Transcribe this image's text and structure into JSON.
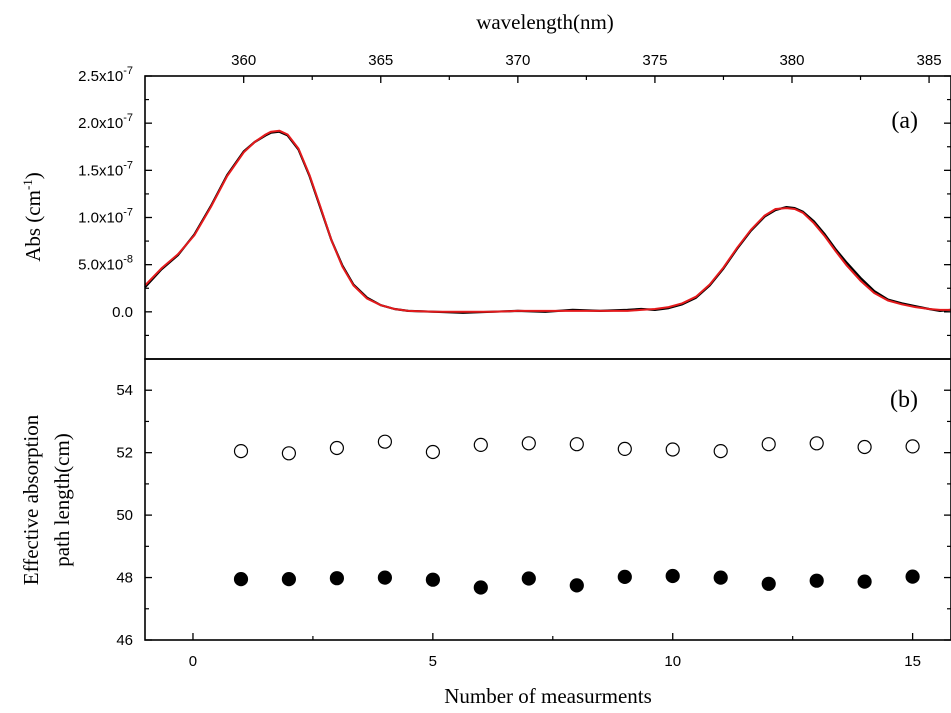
{
  "chart_data": [
    {
      "panel": "a",
      "type": "line",
      "panel_label": "(a)",
      "xlabel": "wavelength(nm)",
      "ylabel": "Abs (cm",
      "ylabel_sup": "-1",
      "ylabel_tail": ")",
      "xlim": [
        356.4,
        385.8
      ],
      "ylim": [
        -5e-08,
        2.5e-07
      ],
      "x_ticks": [
        360,
        365,
        370,
        375,
        380,
        385
      ],
      "y_ticks": [
        0,
        5e-08,
        1e-07,
        1.5e-07,
        2e-07,
        2.5e-07
      ],
      "y_tick_labels": [
        {
          "mantissa": "0.0",
          "exponent": ""
        },
        {
          "mantissa": "5.0x10",
          "exponent": "-8"
        },
        {
          "mantissa": "1.0x10",
          "exponent": "-7"
        },
        {
          "mantissa": "1.5x10",
          "exponent": "-7"
        },
        {
          "mantissa": "2.0x10",
          "exponent": "-7"
        },
        {
          "mantissa": "2.5x10",
          "exponent": "-7"
        }
      ],
      "series": [
        {
          "color": "#000000",
          "x": [
            356.4,
            357.0,
            357.6,
            358.2,
            358.8,
            359.4,
            360.0,
            360.4,
            360.8,
            361.0,
            361.3,
            361.6,
            362.0,
            362.4,
            362.8,
            363.2,
            363.6,
            364.0,
            364.5,
            365.0,
            365.5,
            366.0,
            367.0,
            368.0,
            369.0,
            370.0,
            371.0,
            372.0,
            373.0,
            374.0,
            374.5,
            375.0,
            375.5,
            376.0,
            376.5,
            377.0,
            377.5,
            378.0,
            378.5,
            379.0,
            379.4,
            379.8,
            380.1,
            380.4,
            380.8,
            381.2,
            381.6,
            382.0,
            382.5,
            383.0,
            383.5,
            384.0,
            384.5,
            385.0,
            385.4,
            385.8
          ],
          "y": [
            2.6e-08,
            4.5e-08,
            6e-08,
            8.2e-08,
            1.12e-07,
            1.45e-07,
            1.7e-07,
            1.8e-07,
            1.87e-07,
            1.9e-07,
            1.91e-07,
            1.87e-07,
            1.72e-07,
            1.44e-07,
            1.1e-07,
            7.6e-08,
            4.9e-08,
            2.9e-08,
            1.5e-08,
            7e-09,
            3e-09,
            1e-09,
            0.0,
            -1e-09,
            0.0,
            1e-09,
            0.0,
            2e-09,
            1e-09,
            2e-09,
            3e-09,
            2e-09,
            4e-09,
            8e-09,
            1.5e-08,
            2.8e-08,
            4.6e-08,
            6.7e-08,
            8.6e-08,
            1.01e-07,
            1.08e-07,
            1.11e-07,
            1.1e-07,
            1.06e-07,
            9.6e-08,
            8.2e-08,
            6.6e-08,
            5.2e-08,
            3.6e-08,
            2.2e-08,
            1.3e-08,
            9e-09,
            6e-09,
            3e-09,
            1e-09,
            2e-09
          ]
        },
        {
          "color": "#e41a1c",
          "x": [
            356.4,
            357.0,
            357.6,
            358.2,
            358.8,
            359.4,
            360.0,
            360.4,
            360.8,
            361.0,
            361.3,
            361.6,
            362.0,
            362.4,
            362.8,
            363.2,
            363.6,
            364.0,
            364.5,
            365.0,
            365.5,
            366.0,
            367.0,
            368.0,
            369.0,
            370.0,
            371.0,
            372.0,
            373.0,
            374.0,
            374.5,
            375.0,
            375.5,
            376.0,
            376.5,
            377.0,
            377.5,
            378.0,
            378.5,
            379.0,
            379.4,
            379.8,
            380.1,
            380.4,
            380.8,
            381.2,
            381.6,
            382.0,
            382.5,
            383.0,
            383.5,
            384.0,
            384.5,
            385.0,
            385.4,
            385.8
          ],
          "y": [
            2.8e-08,
            4.6e-08,
            6.1e-08,
            8.1e-08,
            1.11e-07,
            1.44e-07,
            1.69e-07,
            1.8e-07,
            1.88e-07,
            1.91e-07,
            1.92e-07,
            1.88e-07,
            1.73e-07,
            1.45e-07,
            1.11e-07,
            7.6e-08,
            4.8e-08,
            2.8e-08,
            1.4e-08,
            7e-09,
            3e-09,
            1e-09,
            0.0,
            0.0,
            0.0,
            1e-09,
            1e-09,
            1e-09,
            1e-09,
            1e-09,
            2e-09,
            3e-09,
            5e-09,
            9e-09,
            1.6e-08,
            2.9e-08,
            4.7e-08,
            6.8e-08,
            8.7e-08,
            1.02e-07,
            1.09e-07,
            1.1e-07,
            1.09e-07,
            1.05e-07,
            9.4e-08,
            8e-08,
            6.4e-08,
            4.9e-08,
            3.3e-08,
            2e-08,
            1.2e-08,
            8e-09,
            5e-09,
            3e-09,
            2e-09,
            2e-09
          ]
        }
      ]
    },
    {
      "panel": "b",
      "type": "scatter",
      "panel_label": "(b)",
      "xlabel": "Number of measurments",
      "ylabel_lines": [
        "Effective absorption",
        "path length(cm)"
      ],
      "xlim": [
        -1.0,
        15.8
      ],
      "ylim": [
        46,
        55
      ],
      "x_ticks": [
        0,
        5,
        10,
        15
      ],
      "x_tick_labels": [
        "0",
        "5",
        "10",
        "15"
      ],
      "y_ticks": [
        46,
        48,
        50,
        52,
        54
      ],
      "y_tick_labels": [
        "46",
        "48",
        "50",
        "52",
        "54"
      ],
      "series": [
        {
          "marker": "open-circle",
          "x": [
            1,
            2,
            3,
            4,
            5,
            6,
            7,
            8,
            9,
            10,
            11,
            12,
            13,
            14,
            15
          ],
          "y": [
            52.05,
            51.98,
            52.15,
            52.35,
            52.02,
            52.25,
            52.3,
            52.27,
            52.12,
            52.1,
            52.05,
            52.27,
            52.3,
            52.18,
            52.2
          ]
        },
        {
          "marker": "filled-circle",
          "x": [
            1,
            2,
            3,
            4,
            5,
            6,
            7,
            8,
            9,
            10,
            11,
            12,
            13,
            14,
            15
          ],
          "y": [
            47.95,
            47.95,
            47.98,
            48.0,
            47.93,
            47.68,
            47.97,
            47.75,
            48.02,
            48.05,
            48.0,
            47.8,
            47.9,
            47.87,
            48.03
          ]
        }
      ]
    }
  ]
}
